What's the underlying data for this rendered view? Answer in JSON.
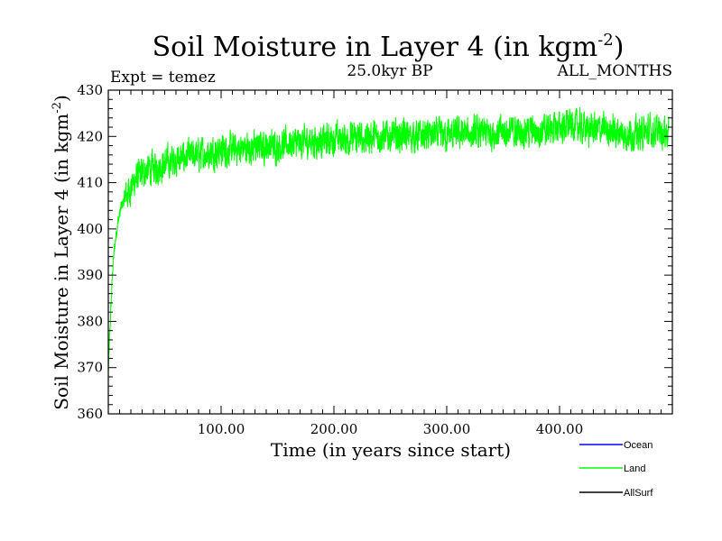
{
  "chart_data": {
    "type": "line",
    "title": "Soil Moisture in Layer 4 (in kgm",
    "title_superscript": "-2",
    "title_close": ")",
    "subtitle_left": "Expt = temez",
    "subtitle_center": "25.0kyr BP",
    "subtitle_right": "ALL_MONTHS",
    "xlabel": "Time (in years since start)",
    "ylabel": "Soil Moisture in Layer 4 (in kgm",
    "ylabel_superscript": "-2",
    "ylabel_close": ")",
    "xlim": [
      0,
      500
    ],
    "ylim": [
      360,
      430
    ],
    "x_ticks": [
      100,
      200,
      300,
      400
    ],
    "x_tick_labels": [
      "100.00",
      "200.00",
      "300.00",
      "400.00"
    ],
    "y_ticks": [
      360,
      370,
      380,
      390,
      400,
      410,
      420,
      430
    ],
    "y_tick_labels": [
      "360",
      "370",
      "380",
      "390",
      "400",
      "410",
      "420",
      "430"
    ],
    "grid": false,
    "legend_position": "bottom-right",
    "series": [
      {
        "name": "Ocean",
        "color": "#0000ff",
        "x": [],
        "values": []
      },
      {
        "name": "Land",
        "color": "#00ff00",
        "x": [
          0,
          2,
          4,
          6,
          8,
          10,
          12,
          15,
          18,
          20,
          25,
          30,
          35,
          40,
          45,
          50,
          55,
          60,
          70,
          80,
          90,
          100,
          110,
          120,
          130,
          140,
          150,
          160,
          170,
          180,
          190,
          200,
          210,
          220,
          230,
          240,
          250,
          260,
          270,
          280,
          290,
          300,
          310,
          320,
          330,
          340,
          350,
          360,
          370,
          380,
          390,
          400,
          410,
          420,
          430,
          440,
          450,
          460,
          470,
          480,
          490,
          497
        ],
        "values": [
          369,
          381,
          392,
          397,
          401,
          403,
          405,
          407,
          408,
          409,
          411,
          412,
          413,
          413,
          413.5,
          414,
          414.5,
          415,
          415.5,
          416,
          416.5,
          417,
          417,
          417.5,
          417.5,
          418,
          418,
          418.5,
          418.5,
          419,
          419,
          419.5,
          419.5,
          419.5,
          419.8,
          420,
          420,
          420.2,
          420,
          420.2,
          420.3,
          420.3,
          420.5,
          420.5,
          420.5,
          420.8,
          421,
          421,
          421.2,
          421,
          421.5,
          422,
          422.5,
          422,
          421.5,
          421.5,
          421,
          420.5,
          420.5,
          421,
          421,
          421
        ]
      },
      {
        "name": "AllSurf",
        "color": "#000000",
        "x": [],
        "values": []
      }
    ]
  }
}
